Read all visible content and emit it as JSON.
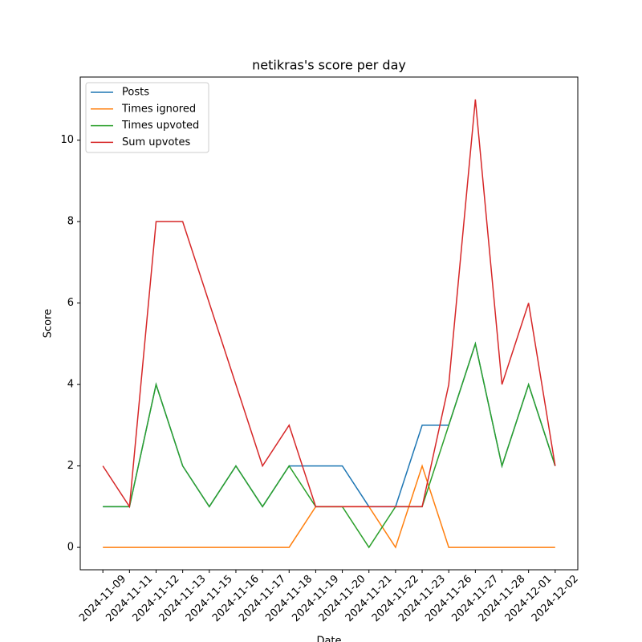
{
  "chart_data": {
    "type": "line",
    "title": "netikras's score per day",
    "xlabel": "Date",
    "ylabel": "Score",
    "categories": [
      "2024-11-09",
      "2024-11-11",
      "2024-11-12",
      "2024-11-13",
      "2024-11-15",
      "2024-11-16",
      "2024-11-17",
      "2024-11-18",
      "2024-11-19",
      "2024-11-20",
      "2024-11-21",
      "2024-11-22",
      "2024-11-23",
      "2024-11-26",
      "2024-11-27",
      "2024-11-28",
      "2024-12-01",
      "2024-12-02"
    ],
    "series": [
      {
        "name": "Posts",
        "color": "#1f77b4",
        "values": [
          1,
          1,
          4,
          2,
          1,
          2,
          1,
          2,
          2,
          2,
          1,
          1,
          3,
          3,
          5,
          2,
          4,
          2
        ]
      },
      {
        "name": "Times ignored",
        "color": "#ff7f0e",
        "values": [
          0,
          0,
          0,
          0,
          0,
          0,
          0,
          0,
          1,
          1,
          1,
          0,
          2,
          0,
          0,
          0,
          0,
          0
        ]
      },
      {
        "name": "Times upvoted",
        "color": "#2ca02c",
        "values": [
          1,
          1,
          4,
          2,
          1,
          2,
          1,
          2,
          1,
          1,
          0,
          1,
          1,
          3,
          5,
          2,
          4,
          2
        ]
      },
      {
        "name": "Sum upvotes",
        "color": "#d62728",
        "values": [
          2,
          1,
          8,
          8,
          6,
          4,
          2,
          3,
          1,
          1,
          1,
          1,
          1,
          4,
          11,
          4,
          6,
          2
        ]
      }
    ],
    "ylim": [
      -0.55,
      11.55
    ],
    "yticks": [
      0,
      2,
      4,
      6,
      8,
      10
    ],
    "legend": "upper left"
  }
}
